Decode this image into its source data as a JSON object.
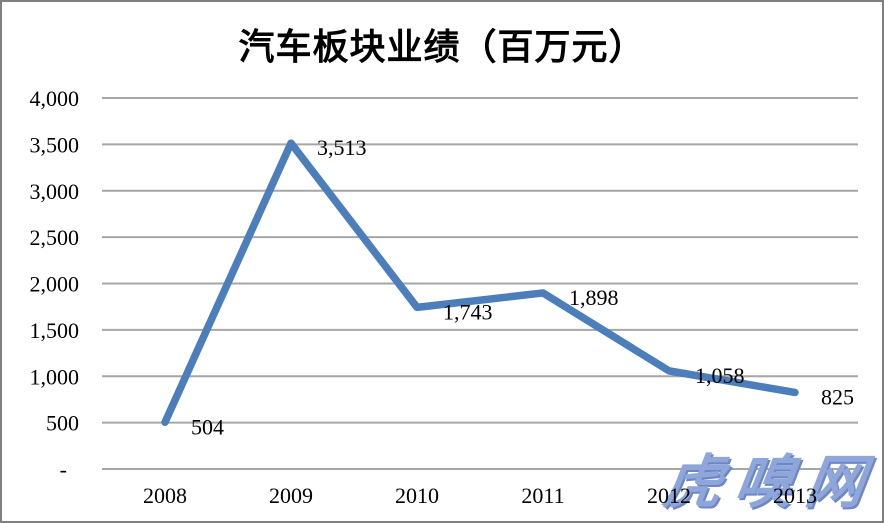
{
  "watermark_text": "虎嗅网",
  "chart_data": {
    "type": "line",
    "title": "汽车板块业绩（百万元）",
    "categories": [
      "2008",
      "2009",
      "2010",
      "2011",
      "2012",
      "2013"
    ],
    "values": [
      504,
      3513,
      1743,
      1898,
      1058,
      825
    ],
    "data_labels": [
      "504",
      "3,513",
      "1,743",
      "1,898",
      "1,058",
      "825"
    ],
    "xlabel": "",
    "ylabel": "",
    "ylim": [
      0,
      4000
    ],
    "ytick_step": 500,
    "ytick_labels": [
      "-",
      "500",
      "1,000",
      "1,500",
      "2,000",
      "2,500",
      "3,000",
      "3,500",
      "4,000"
    ],
    "grid": true,
    "legend": false,
    "colors": {
      "line": "#4b7eba",
      "gridline": "#a6a6a6",
      "text": "#000000",
      "frame_border": "#7f7f7f",
      "background": "#ffffff",
      "watermark": "#8ea6da",
      "watermark_shadow": "#6d86c4"
    }
  }
}
